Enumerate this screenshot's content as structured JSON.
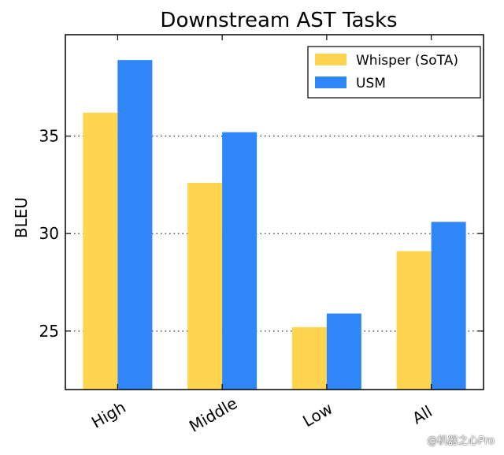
{
  "chart_data": {
    "type": "bar",
    "title": "Downstream AST Tasks",
    "xlabel": "",
    "ylabel": "BLEU",
    "categories": [
      "High",
      "Middle",
      "Low",
      "All"
    ],
    "series": [
      {
        "name": "Whisper (SoTA)",
        "color": "#ffd54f",
        "values": [
          36.2,
          32.6,
          25.2,
          29.1
        ]
      },
      {
        "name": "USM",
        "color": "#2f86f6",
        "values": [
          38.9,
          35.2,
          25.9,
          30.6
        ]
      }
    ],
    "ylim": [
      22,
      40.2
    ],
    "yticks": [
      25,
      30,
      35
    ],
    "grid": "y-dotted",
    "legend_position": "top-right"
  },
  "watermark": "@机器之心Pro"
}
